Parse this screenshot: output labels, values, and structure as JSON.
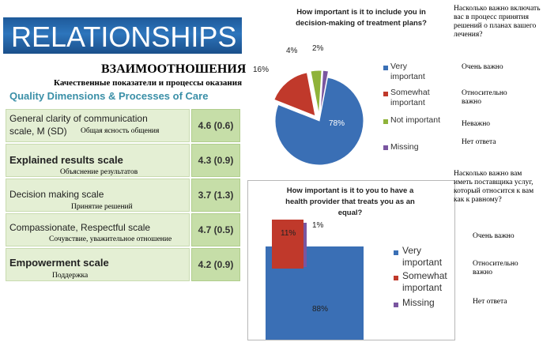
{
  "banner": {
    "text": "RELATIONSHIPS"
  },
  "russian_title": "ВЗАИМООТНОШЕНИЯ",
  "russian_subtitle": "Качественные показатели и процессы оказания",
  "quality_title": "Quality Dimensions  & Processes of Care",
  "rows": [
    {
      "name_line1": "General clarity of communication",
      "name_line2": "scale, M (SD)",
      "ru": "Общая ясность общения",
      "value": "4.6 (0.6)"
    },
    {
      "name": "Explained results scale",
      "ru": "Объяснение результатов",
      "value": "4.3 (0.9)"
    },
    {
      "name": "Decision making scale",
      "ru": "Принятие решений",
      "value": "3.7 (1.3)"
    },
    {
      "name": "Compassionate, Respectful scale",
      "ru": "Сочувствие, уважительное отношение",
      "value": "4.7 (0.5)"
    },
    {
      "name": "Empowerment scale",
      "ru": "Поддержка",
      "value": "4.2 (0.9)"
    }
  ],
  "chart1": {
    "title_line1": "How important is it to include you in",
    "title_line2": "decision-making of treatment plans?",
    "legend": [
      "Very important",
      "Somewhat important",
      "Not important",
      "Missing"
    ],
    "legend_lines": [
      [
        "Very",
        "important"
      ],
      [
        "Somewhat",
        "important"
      ],
      [
        "Not important"
      ],
      [
        "Missing"
      ]
    ],
    "ru_question": [
      "Насколько важно включать",
      "вас в процесс принятия",
      "решений о планах вашего",
      "лечения?"
    ],
    "ru_legend": [
      [
        "Очень важно"
      ],
      [
        "Относительно",
        "важно"
      ],
      [
        "Неважно"
      ],
      [
        "Нет ответа"
      ]
    ],
    "labels": [
      "78%",
      "16%",
      "4%",
      "2%"
    ]
  },
  "chart2": {
    "title_line1": "How important is it to you to have a",
    "title_line2": "health provider that treats you as an",
    "title_line3": "equal?",
    "legend": [
      "Very important",
      "Somewhat important",
      "Missing"
    ],
    "legend_lines": [
      [
        "Very",
        "important"
      ],
      [
        "Somewhat",
        "important"
      ],
      [
        "Missing"
      ]
    ],
    "ru_question": [
      "Насколько важно вам",
      "иметь поставщика услуг,",
      "который относится к вам",
      "как к равному?"
    ],
    "ru_legend": [
      [
        "Очень важно"
      ],
      [
        "Относительно",
        "важно"
      ],
      [
        "Нет ответа"
      ]
    ],
    "labels": [
      "88%",
      "11%",
      "1%"
    ]
  },
  "chart_data": [
    {
      "type": "pie",
      "title": "How important is it to include you in decision-making of treatment plans?",
      "categories": [
        "Very important",
        "Somewhat important",
        "Not important",
        "Missing"
      ],
      "values": [
        78,
        16,
        4,
        2
      ],
      "colors": [
        "#3a6fb5",
        "#c0392b",
        "#8fb33a",
        "#7a56a0"
      ],
      "legend_position": "right"
    },
    {
      "type": "bar",
      "title": "How important is it to you to have a health provider that treats you as an equal?",
      "categories": [
        "Very important",
        "Somewhat important",
        "Missing"
      ],
      "values": [
        88,
        11,
        1
      ],
      "colors": [
        "#3a6fb5",
        "#c0392b",
        "#7a56a0"
      ],
      "legend_position": "right"
    }
  ]
}
